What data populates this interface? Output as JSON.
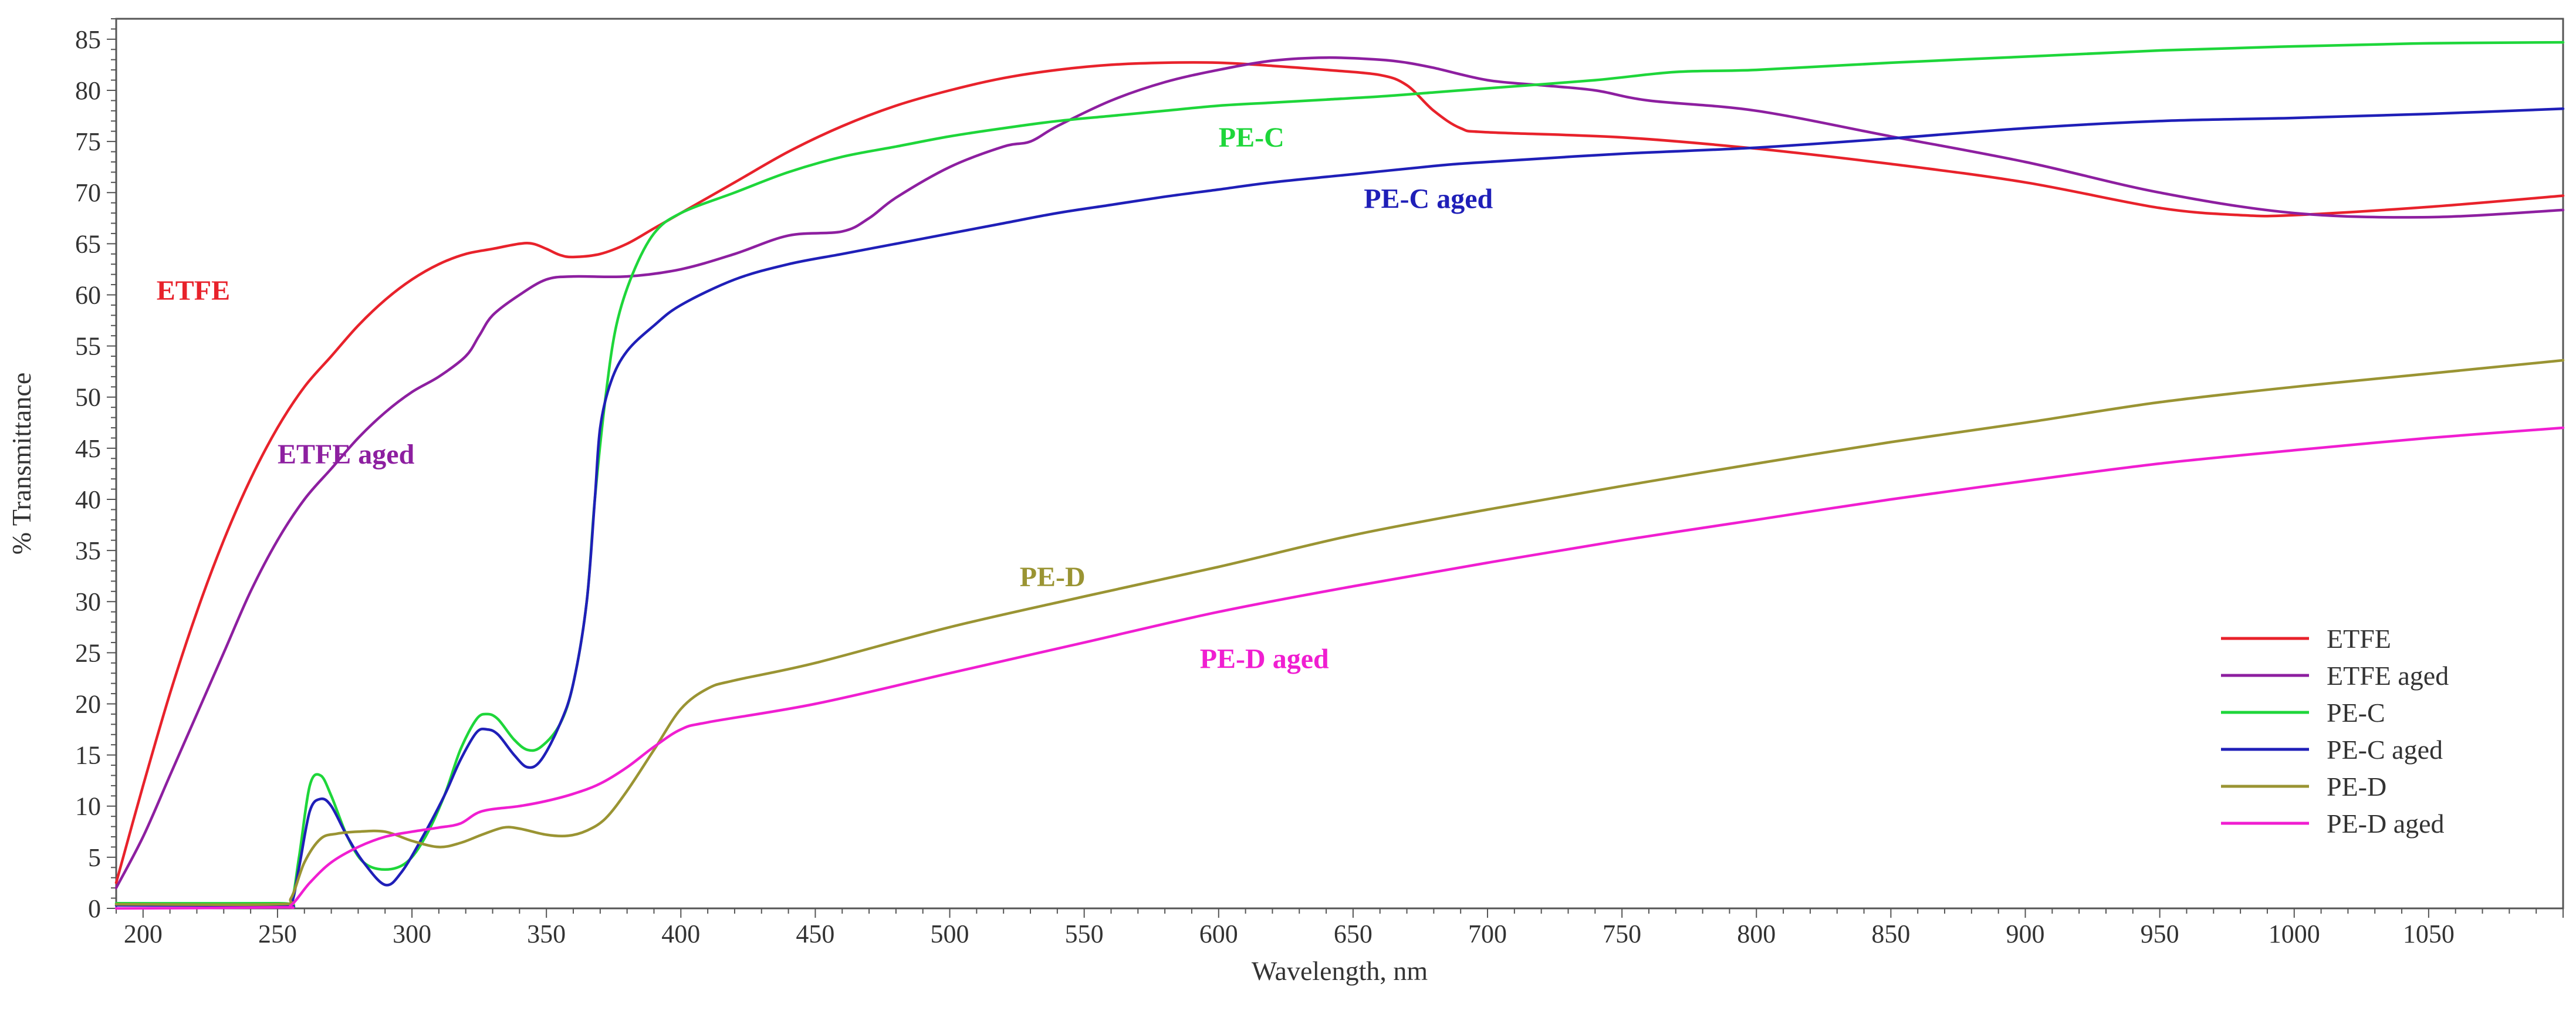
{
  "chart_data": {
    "type": "line",
    "title": "",
    "xlabel": "Wavelength, nm",
    "ylabel": "% Transmittance",
    "xlim": [
      190,
      1100
    ],
    "ylim": [
      0,
      87
    ],
    "xticks": [
      200,
      250,
      300,
      350,
      400,
      450,
      500,
      550,
      600,
      650,
      700,
      750,
      800,
      850,
      900,
      950,
      1000,
      1050
    ],
    "yticks": [
      0,
      5,
      10,
      15,
      20,
      25,
      30,
      35,
      40,
      45,
      50,
      55,
      60,
      65,
      70,
      75,
      80,
      85
    ],
    "grid": false,
    "legend_position": "bottom-right",
    "series": [
      {
        "name": "ETFE",
        "color": "#e8222b",
        "label": {
          "text": "ETFE",
          "x": 205,
          "y": 59.5
        },
        "points": [
          [
            190,
            2.5
          ],
          [
            200,
            12
          ],
          [
            210,
            21
          ],
          [
            220,
            29
          ],
          [
            230,
            36
          ],
          [
            240,
            42
          ],
          [
            250,
            47
          ],
          [
            260,
            51
          ],
          [
            270,
            54
          ],
          [
            280,
            57
          ],
          [
            290,
            59.5
          ],
          [
            300,
            61.5
          ],
          [
            310,
            63
          ],
          [
            320,
            64
          ],
          [
            330,
            64.5
          ],
          [
            340,
            65
          ],
          [
            345,
            65
          ],
          [
            350,
            64.5
          ],
          [
            355,
            63.9
          ],
          [
            360,
            63.7
          ],
          [
            370,
            64
          ],
          [
            380,
            65
          ],
          [
            390,
            66.5
          ],
          [
            400,
            68
          ],
          [
            420,
            71
          ],
          [
            440,
            74
          ],
          [
            460,
            76.5
          ],
          [
            480,
            78.5
          ],
          [
            500,
            80
          ],
          [
            520,
            81.2
          ],
          [
            540,
            82
          ],
          [
            560,
            82.5
          ],
          [
            580,
            82.7
          ],
          [
            600,
            82.7
          ],
          [
            620,
            82.4
          ],
          [
            640,
            82
          ],
          [
            660,
            81.5
          ],
          [
            670,
            80.5
          ],
          [
            680,
            78
          ],
          [
            690,
            76.3
          ],
          [
            700,
            75.9
          ],
          [
            750,
            75.4
          ],
          [
            800,
            74.3
          ],
          [
            850,
            72.8
          ],
          [
            900,
            71
          ],
          [
            950,
            68.5
          ],
          [
            980,
            67.8
          ],
          [
            1000,
            67.8
          ],
          [
            1050,
            68.6
          ],
          [
            1100,
            69.7
          ]
        ]
      },
      {
        "name": "ETFE aged",
        "color": "#8d1fa0",
        "label": {
          "text": "ETFE aged",
          "x": 250,
          "y": 43.5
        },
        "points": [
          [
            190,
            2
          ],
          [
            200,
            7
          ],
          [
            210,
            13
          ],
          [
            220,
            19
          ],
          [
            230,
            25
          ],
          [
            240,
            31
          ],
          [
            250,
            36
          ],
          [
            260,
            40
          ],
          [
            270,
            43
          ],
          [
            280,
            46
          ],
          [
            290,
            48.5
          ],
          [
            300,
            50.5
          ],
          [
            310,
            52
          ],
          [
            320,
            54
          ],
          [
            325,
            56
          ],
          [
            330,
            58
          ],
          [
            340,
            60
          ],
          [
            350,
            61.5
          ],
          [
            360,
            61.8
          ],
          [
            380,
            61.8
          ],
          [
            400,
            62.5
          ],
          [
            420,
            64
          ],
          [
            440,
            65.8
          ],
          [
            460,
            66.2
          ],
          [
            470,
            67.5
          ],
          [
            480,
            69.5
          ],
          [
            500,
            72.5
          ],
          [
            520,
            74.5
          ],
          [
            530,
            75
          ],
          [
            540,
            76.5
          ],
          [
            560,
            79
          ],
          [
            580,
            80.8
          ],
          [
            600,
            82
          ],
          [
            620,
            82.9
          ],
          [
            640,
            83.2
          ],
          [
            660,
            83
          ],
          [
            670,
            82.7
          ],
          [
            680,
            82.2
          ],
          [
            700,
            81
          ],
          [
            720,
            80.5
          ],
          [
            740,
            80
          ],
          [
            760,
            79
          ],
          [
            800,
            78
          ],
          [
            850,
            75.5
          ],
          [
            900,
            73
          ],
          [
            950,
            70
          ],
          [
            1000,
            68
          ],
          [
            1050,
            67.6
          ],
          [
            1100,
            68.3
          ]
        ]
      },
      {
        "name": "PE-C",
        "color": "#1ed63a",
        "label": {
          "text": "PE-C",
          "x": 600,
          "y": 74.5
        },
        "points": [
          [
            190,
            0.5
          ],
          [
            250,
            0.5
          ],
          [
            255,
            0.6
          ],
          [
            258,
            5
          ],
          [
            262,
            12
          ],
          [
            266,
            13
          ],
          [
            270,
            11
          ],
          [
            276,
            7
          ],
          [
            282,
            4.5
          ],
          [
            290,
            3.8
          ],
          [
            298,
            4.5
          ],
          [
            305,
            7
          ],
          [
            312,
            11
          ],
          [
            318,
            15.5
          ],
          [
            324,
            18.5
          ],
          [
            328,
            19
          ],
          [
            332,
            18.5
          ],
          [
            338,
            16.5
          ],
          [
            343,
            15.5
          ],
          [
            348,
            15.8
          ],
          [
            355,
            18
          ],
          [
            360,
            22
          ],
          [
            365,
            30
          ],
          [
            368,
            40
          ],
          [
            372,
            50
          ],
          [
            376,
            57
          ],
          [
            382,
            62
          ],
          [
            390,
            66
          ],
          [
            400,
            68
          ],
          [
            420,
            70
          ],
          [
            440,
            72
          ],
          [
            460,
            73.5
          ],
          [
            480,
            74.5
          ],
          [
            500,
            75.5
          ],
          [
            520,
            76.3
          ],
          [
            540,
            77
          ],
          [
            560,
            77.5
          ],
          [
            580,
            78
          ],
          [
            600,
            78.5
          ],
          [
            620,
            78.8
          ],
          [
            640,
            79.1
          ],
          [
            660,
            79.4
          ],
          [
            680,
            79.8
          ],
          [
            700,
            80.2
          ],
          [
            740,
            81
          ],
          [
            770,
            81.8
          ],
          [
            800,
            82
          ],
          [
            850,
            82.7
          ],
          [
            900,
            83.3
          ],
          [
            950,
            83.9
          ],
          [
            1000,
            84.3
          ],
          [
            1050,
            84.6
          ],
          [
            1100,
            84.7
          ]
        ]
      },
      {
        "name": "PE-C aged",
        "color": "#1f1fb8",
        "label": {
          "text": "PE-C aged",
          "x": 654,
          "y": 68.5
        },
        "points": [
          [
            190,
            0.3
          ],
          [
            250,
            0.3
          ],
          [
            255,
            0.4
          ],
          [
            258,
            4
          ],
          [
            262,
            9.5
          ],
          [
            266,
            10.7
          ],
          [
            270,
            10
          ],
          [
            276,
            7
          ],
          [
            282,
            4.5
          ],
          [
            290,
            2.3
          ],
          [
            296,
            3.5
          ],
          [
            304,
            7
          ],
          [
            312,
            11
          ],
          [
            318,
            14.5
          ],
          [
            324,
            17.2
          ],
          [
            328,
            17.5
          ],
          [
            332,
            17
          ],
          [
            338,
            15
          ],
          [
            343,
            13.8
          ],
          [
            348,
            14.5
          ],
          [
            355,
            18
          ],
          [
            360,
            22
          ],
          [
            365,
            30
          ],
          [
            368,
            40
          ],
          [
            370,
            47
          ],
          [
            374,
            51.5
          ],
          [
            380,
            54.5
          ],
          [
            390,
            57
          ],
          [
            400,
            59
          ],
          [
            420,
            61.5
          ],
          [
            440,
            63
          ],
          [
            460,
            64
          ],
          [
            480,
            65
          ],
          [
            500,
            66
          ],
          [
            520,
            67
          ],
          [
            540,
            68
          ],
          [
            560,
            68.8
          ],
          [
            580,
            69.6
          ],
          [
            600,
            70.3
          ],
          [
            620,
            71
          ],
          [
            650,
            71.8
          ],
          [
            680,
            72.6
          ],
          [
            700,
            73
          ],
          [
            750,
            73.8
          ],
          [
            800,
            74.4
          ],
          [
            850,
            75.3
          ],
          [
            900,
            76.3
          ],
          [
            950,
            77
          ],
          [
            1000,
            77.3
          ],
          [
            1050,
            77.7
          ],
          [
            1100,
            78.2
          ]
        ]
      },
      {
        "name": "PE-D",
        "color": "#9a9433",
        "label": {
          "text": "PE-D",
          "x": 526,
          "y": 31.5
        },
        "points": [
          [
            190,
            0.4
          ],
          [
            250,
            0.4
          ],
          [
            255,
            1
          ],
          [
            260,
            4.5
          ],
          [
            266,
            6.8
          ],
          [
            272,
            7.3
          ],
          [
            280,
            7.5
          ],
          [
            290,
            7.5
          ],
          [
            300,
            6.6
          ],
          [
            310,
            6
          ],
          [
            318,
            6.4
          ],
          [
            326,
            7.2
          ],
          [
            334,
            7.9
          ],
          [
            340,
            7.8
          ],
          [
            350,
            7.2
          ],
          [
            358,
            7.1
          ],
          [
            365,
            7.6
          ],
          [
            372,
            8.8
          ],
          [
            380,
            11.5
          ],
          [
            390,
            15.5
          ],
          [
            400,
            19.5
          ],
          [
            410,
            21.5
          ],
          [
            420,
            22.3
          ],
          [
            450,
            24
          ],
          [
            500,
            27.5
          ],
          [
            550,
            30.5
          ],
          [
            600,
            33.4
          ],
          [
            650,
            36.5
          ],
          [
            700,
            39
          ],
          [
            750,
            41.3
          ],
          [
            800,
            43.5
          ],
          [
            850,
            45.6
          ],
          [
            900,
            47.5
          ],
          [
            950,
            49.5
          ],
          [
            1000,
            51
          ],
          [
            1050,
            52.3
          ],
          [
            1100,
            53.6
          ]
        ]
      },
      {
        "name": "PE-D aged",
        "color": "#f01ed1",
        "label": {
          "text": "PE-D aged",
          "x": 593,
          "y": 23.5
        },
        "points": [
          [
            190,
            0
          ],
          [
            250,
            0.1
          ],
          [
            255,
            0.3
          ],
          [
            262,
            2.5
          ],
          [
            270,
            4.5
          ],
          [
            280,
            6
          ],
          [
            290,
            7
          ],
          [
            300,
            7.5
          ],
          [
            310,
            7.9
          ],
          [
            318,
            8.3
          ],
          [
            326,
            9.5
          ],
          [
            340,
            10
          ],
          [
            350,
            10.5
          ],
          [
            360,
            11.2
          ],
          [
            370,
            12.2
          ],
          [
            380,
            13.8
          ],
          [
            390,
            15.8
          ],
          [
            400,
            17.5
          ],
          [
            410,
            18.2
          ],
          [
            450,
            20
          ],
          [
            500,
            23
          ],
          [
            550,
            26
          ],
          [
            600,
            29
          ],
          [
            650,
            31.5
          ],
          [
            700,
            33.8
          ],
          [
            750,
            36
          ],
          [
            800,
            38
          ],
          [
            850,
            40
          ],
          [
            900,
            41.8
          ],
          [
            950,
            43.5
          ],
          [
            1000,
            44.8
          ],
          [
            1050,
            46
          ],
          [
            1100,
            47
          ]
        ]
      }
    ]
  }
}
